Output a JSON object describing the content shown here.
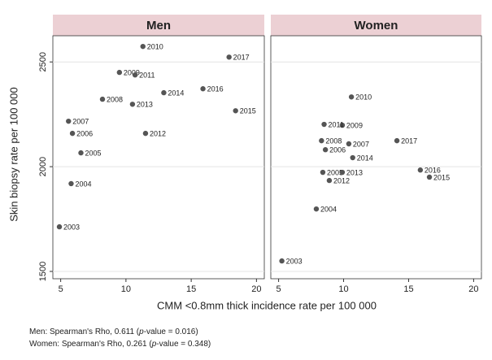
{
  "chart_data": [
    {
      "type": "scatter",
      "title": "Men",
      "color": "#555555",
      "x": [
        4.9,
        5.8,
        6.55,
        5.9,
        5.6,
        8.2,
        9.5,
        11.3,
        10.7,
        11.5,
        10.5,
        12.9,
        18.4,
        15.9,
        17.9
      ],
      "values": [
        1713,
        1919,
        2066,
        2159,
        2217,
        2322,
        2450,
        2574,
        2438,
        2159,
        2298,
        2353,
        2267,
        2372,
        2523
      ],
      "labels": [
        "2003",
        "2004",
        "2005",
        "2006",
        "2007",
        "2008",
        "2009",
        "2010",
        "2011",
        "2012",
        "2013",
        "2014",
        "2015",
        "2016",
        "2017"
      ],
      "xlim": [
        4.4,
        20.6
      ],
      "xticks": [
        5,
        10,
        15,
        20
      ],
      "ylim": [
        1465,
        2625
      ],
      "yticks": [
        1500,
        2000,
        2500
      ],
      "grid": true
    },
    {
      "type": "scatter",
      "title": "Women",
      "color": "#555555",
      "x": [
        5.25,
        7.9,
        8.4,
        8.6,
        10.4,
        8.3,
        9.9,
        10.6,
        8.5,
        8.9,
        9.9,
        10.7,
        16.6,
        15.9,
        14.1
      ],
      "values": [
        1550,
        1798,
        1973,
        2081,
        2109,
        2124,
        2198,
        2333,
        2202,
        1934,
        1973,
        2043,
        1950,
        1984,
        2124
      ],
      "labels": [
        "2003",
        "2004",
        "2005",
        "2006",
        "2007",
        "2008",
        "2009",
        "2010",
        "2011",
        "2012",
        "2013",
        "2014",
        "2015",
        "2016",
        "2017"
      ],
      "xlim": [
        4.4,
        20.6
      ],
      "xticks": [
        5,
        10,
        15,
        20
      ],
      "ylim": [
        1465,
        2625
      ],
      "yticks": [
        1500,
        2000,
        2500
      ],
      "grid": true
    }
  ],
  "ylabel": "Skin biopsy rate per 100 000",
  "xlabel": "CMM <0.8mm thick incidence rate per 100 000",
  "notes": [
    [
      "Men: Spearman's Rho, 0.611 (",
      "p",
      "-value = 0.016)"
    ],
    [
      "Women: Spearman's Rho, 0.261 (",
      "p",
      "-value = 0.348)"
    ]
  ]
}
